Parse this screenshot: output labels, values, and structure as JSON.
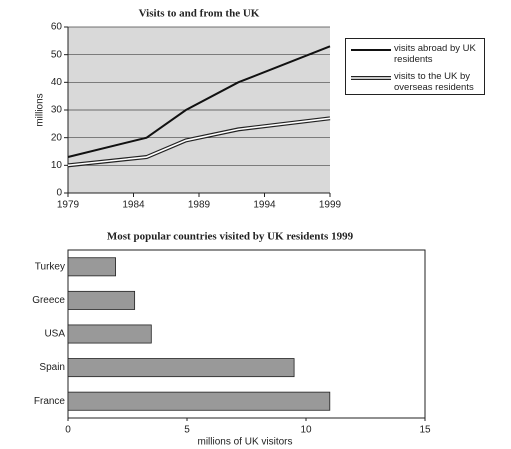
{
  "chart_data": [
    {
      "type": "line",
      "title": "Visits to and from the UK",
      "y_label": "millions",
      "x": [
        1979,
        1985,
        1988,
        1992,
        1999
      ],
      "series": [
        {
          "name": "visits abroad by UK residents",
          "color": "#111111",
          "line_style": "solid",
          "values": [
            13,
            20,
            30,
            40,
            53
          ]
        },
        {
          "name": "visits to the UK by overseas residents",
          "color": "#222222",
          "line_style": "double",
          "values": [
            10,
            13,
            19,
            23,
            27
          ]
        }
      ],
      "xlim": [
        1979,
        1999
      ],
      "xticks": [
        1979,
        1984,
        1989,
        1994,
        1999
      ],
      "ylim": [
        0,
        60
      ],
      "yticks": [
        0,
        10,
        20,
        30,
        40,
        50,
        60
      ],
      "grid": true,
      "background": "#d9d9d9",
      "legend": "right"
    },
    {
      "type": "barh",
      "title": "Most popular countries visited by UK residents 1999",
      "x_label": "millions of UK visitors",
      "categories": [
        "Turkey",
        "Greece",
        "USA",
        "Spain",
        "France"
      ],
      "values": [
        2,
        2.8,
        3.5,
        9.5,
        11
      ],
      "color": "#999999",
      "xlim": [
        0,
        15
      ],
      "xticks": [
        0,
        5,
        10,
        15
      ]
    }
  ]
}
